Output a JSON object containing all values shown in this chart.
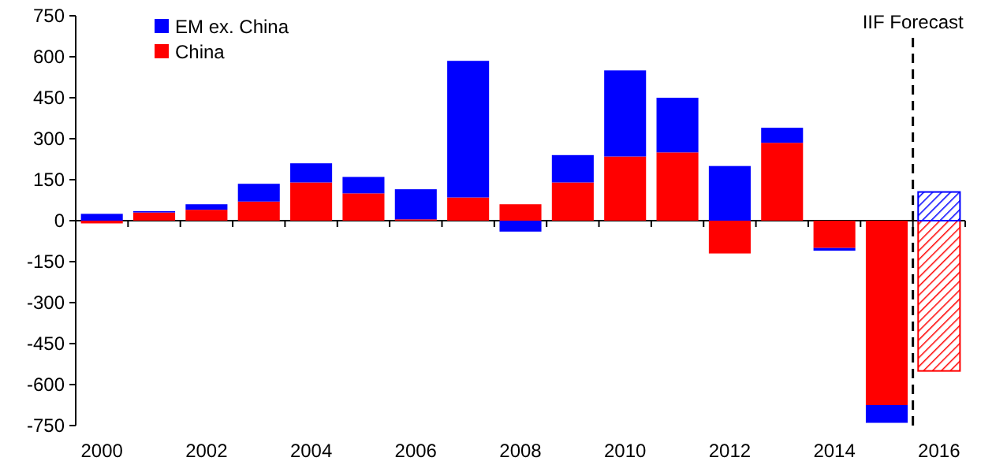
{
  "chart_data": {
    "type": "bar",
    "stacked": true,
    "categories": [
      "2000",
      null,
      "2002",
      null,
      "2004",
      null,
      "2006",
      null,
      "2008",
      null,
      "2010",
      null,
      "2012",
      null,
      "2014",
      null,
      "2016"
    ],
    "series": [
      {
        "name": "China",
        "color": "#ff0000",
        "values": [
          -10,
          30,
          40,
          70,
          140,
          100,
          5,
          85,
          60,
          140,
          235,
          250,
          -120,
          285,
          -100,
          -675,
          -550
        ]
      },
      {
        "name": "EM ex. China",
        "color": "#0000ff",
        "values": [
          25,
          5,
          20,
          65,
          70,
          60,
          110,
          500,
          -40,
          100,
          315,
          200,
          200,
          55,
          -10,
          -65,
          105
        ]
      }
    ],
    "ylim": [
      -750,
      750
    ],
    "yticks": [
      -750,
      -600,
      -450,
      -300,
      -150,
      0,
      150,
      300,
      450,
      600,
      750
    ],
    "ref_lines": [
      {
        "axis": "x",
        "value": "2016",
        "label": "IIF Forecast",
        "line_style": "dashed",
        "color": "#000000"
      }
    ],
    "legend": "top left",
    "grid": false
  }
}
